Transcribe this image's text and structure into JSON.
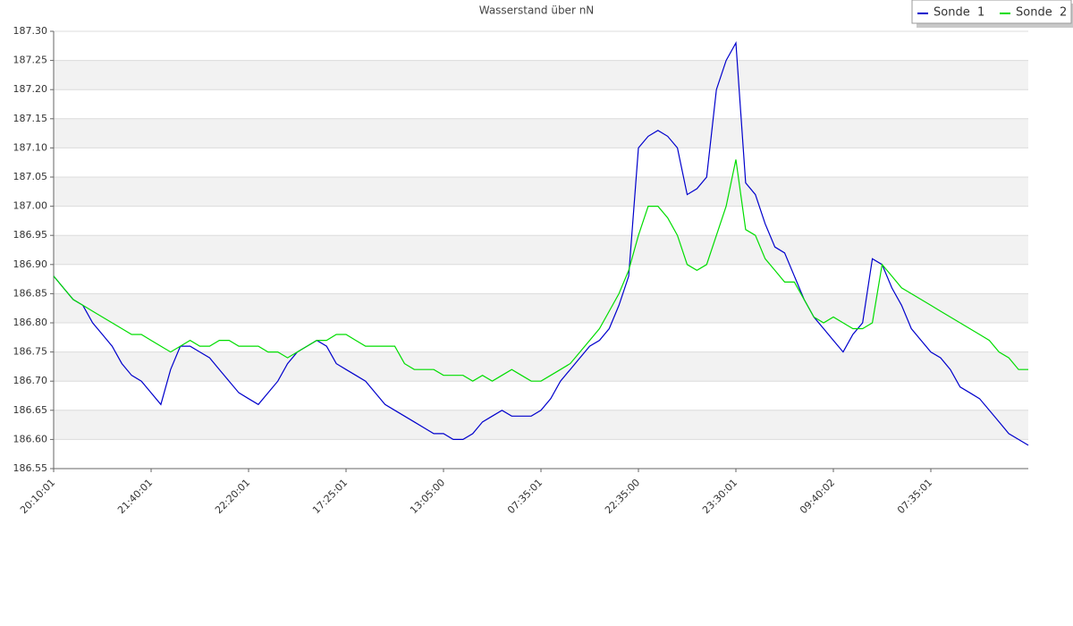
{
  "chart_data": {
    "type": "line",
    "title": "Wasserstand über nN",
    "categories": [
      "20:10:01",
      null,
      null,
      null,
      null,
      null,
      null,
      null,
      null,
      null,
      "21:40:01",
      null,
      null,
      null,
      null,
      null,
      null,
      null,
      null,
      null,
      "22:20:01",
      null,
      null,
      null,
      null,
      null,
      null,
      null,
      null,
      null,
      "17:25:01",
      null,
      null,
      null,
      null,
      null,
      null,
      null,
      null,
      null,
      "13:05:00",
      null,
      null,
      null,
      null,
      null,
      null,
      null,
      null,
      null,
      "07:35:01",
      null,
      null,
      null,
      null,
      null,
      null,
      null,
      null,
      null,
      "22:35:00",
      null,
      null,
      null,
      null,
      null,
      null,
      null,
      null,
      null,
      "23:30:01",
      null,
      null,
      null,
      null,
      null,
      null,
      null,
      null,
      null,
      "09:40:02",
      null,
      null,
      null,
      null,
      null,
      null,
      null,
      null,
      null,
      "07:35:01",
      null,
      null,
      null,
      null,
      null,
      null,
      null,
      null,
      null,
      null
    ],
    "series": [
      {
        "name": "Sonde  1",
        "color": "#0000cc",
        "values": [
          186.88,
          186.86,
          186.84,
          186.83,
          186.8,
          186.78,
          186.76,
          186.73,
          186.71,
          186.7,
          186.68,
          186.66,
          186.72,
          186.76,
          186.76,
          186.75,
          186.74,
          186.72,
          186.7,
          186.68,
          186.67,
          186.66,
          186.68,
          186.7,
          186.73,
          186.75,
          186.76,
          186.77,
          186.76,
          186.73,
          186.72,
          186.71,
          186.7,
          186.68,
          186.66,
          186.65,
          186.64,
          186.63,
          186.62,
          186.61,
          186.61,
          186.6,
          186.6,
          186.61,
          186.63,
          186.64,
          186.65,
          186.64,
          186.64,
          186.64,
          186.65,
          186.67,
          186.7,
          186.72,
          186.74,
          186.76,
          186.77,
          186.79,
          186.83,
          186.88,
          187.1,
          187.12,
          187.13,
          187.12,
          187.1,
          187.02,
          187.03,
          187.05,
          187.2,
          187.25,
          187.28,
          187.04,
          187.02,
          186.97,
          186.93,
          186.92,
          186.88,
          186.84,
          186.81,
          186.79,
          186.77,
          186.75,
          186.78,
          186.8,
          186.91,
          186.9,
          186.86,
          186.83,
          186.79,
          186.77,
          186.75,
          186.74,
          186.72,
          186.69,
          186.68,
          186.67,
          186.65,
          186.63,
          186.61,
          186.6,
          186.59
        ]
      },
      {
        "name": "Sonde  2",
        "color": "#00dd00",
        "values": [
          186.88,
          186.86,
          186.84,
          186.83,
          186.82,
          186.81,
          186.8,
          186.79,
          186.78,
          186.78,
          186.77,
          186.76,
          186.75,
          186.76,
          186.77,
          186.76,
          186.76,
          186.77,
          186.77,
          186.76,
          186.76,
          186.76,
          186.75,
          186.75,
          186.74,
          186.75,
          186.76,
          186.77,
          186.77,
          186.78,
          186.78,
          186.77,
          186.76,
          186.76,
          186.76,
          186.76,
          186.73,
          186.72,
          186.72,
          186.72,
          186.71,
          186.71,
          186.71,
          186.7,
          186.71,
          186.7,
          186.71,
          186.72,
          186.71,
          186.7,
          186.7,
          186.71,
          186.72,
          186.73,
          186.75,
          186.77,
          186.79,
          186.82,
          186.85,
          186.89,
          186.95,
          187.0,
          187.0,
          186.98,
          186.95,
          186.9,
          186.89,
          186.9,
          186.95,
          187.0,
          187.08,
          186.96,
          186.95,
          186.91,
          186.89,
          186.87,
          186.87,
          186.84,
          186.81,
          186.8,
          186.81,
          186.8,
          186.79,
          186.79,
          186.8,
          186.9,
          186.88,
          186.86,
          186.85,
          186.84,
          186.83,
          186.82,
          186.81,
          186.8,
          186.79,
          186.78,
          186.77,
          186.75,
          186.74,
          186.72,
          186.72
        ]
      }
    ],
    "ylim": [
      186.55,
      187.3
    ],
    "yticks": [
      186.55,
      {
        "value": 186.6,
        "label": "186.60"
      },
      186.65,
      {
        "value": 186.7,
        "label": "186.70"
      },
      186.75,
      {
        "value": 186.8,
        "label": "186.80"
      },
      186.85,
      {
        "value": 186.9,
        "label": "186.90"
      },
      186.95,
      {
        "value": 187.0,
        "label": "187.00"
      },
      187.05,
      {
        "value": 187.1,
        "label": "187.10"
      },
      187.15,
      {
        "value": 187.2,
        "label": "187.20"
      },
      187.25,
      {
        "value": 187.3,
        "label": "187.30"
      }
    ],
    "grid": true,
    "legend": "top-right"
  }
}
